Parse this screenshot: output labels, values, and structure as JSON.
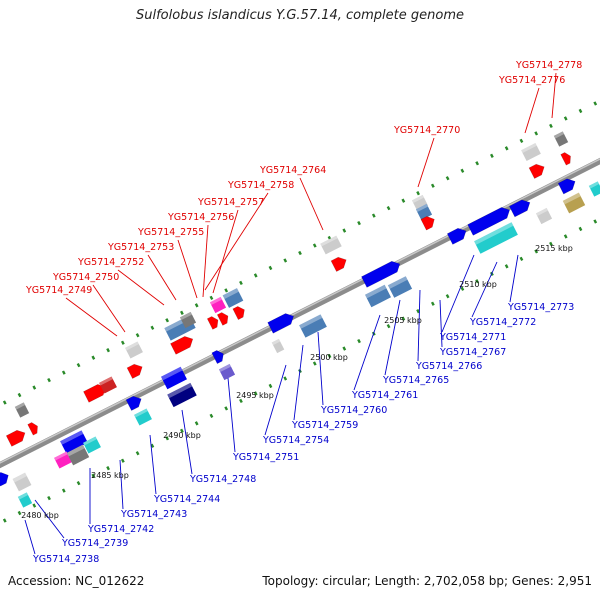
{
  "title": "Sulfolobus islandicus Y.G.57.14, complete genome",
  "accession": "Accession: NC_012622",
  "summary": "Topology: circular; Length: 2,702,058 bp; Genes: 2,951",
  "colors": {
    "forward_label": "#e00000",
    "reverse_label": "#0000cc",
    "backbone": "#8c8c8c",
    "ticks": "#2a8a2a",
    "forward_gene": "#ff0000",
    "reverse_gene": "#0000ee",
    "gene_steel": "#4a7db5",
    "gene_cyan": "#22cccc",
    "gene_navy": "#000080",
    "gene_grey": "#cccccc",
    "gene_magenta": "#ff20c0",
    "gene_olive": "#b8a050"
  },
  "scale_ticks": [
    {
      "label": "2480 kbp"
    },
    {
      "label": "2485 kbp"
    },
    {
      "label": "2490 kbp"
    },
    {
      "label": "2495 kbp"
    },
    {
      "label": "2500 kbp"
    },
    {
      "label": "2505 kbp"
    },
    {
      "label": "2510 kbp"
    },
    {
      "label": "2515 kbp"
    }
  ],
  "forward_labels": [
    {
      "text": "YG5714_2778"
    },
    {
      "text": "YG5714_2776"
    },
    {
      "text": "YG5714_2770"
    },
    {
      "text": "YG5714_2764"
    },
    {
      "text": "YG5714_2758"
    },
    {
      "text": "YG5714_2757"
    },
    {
      "text": "YG5714_2756"
    },
    {
      "text": "YG5714_2755"
    },
    {
      "text": "YG5714_2753"
    },
    {
      "text": "YG5714_2752"
    },
    {
      "text": "YG5714_2750"
    },
    {
      "text": "YG5714_2749"
    }
  ],
  "reverse_labels": [
    {
      "text": "YG5714_2773"
    },
    {
      "text": "YG5714_2772"
    },
    {
      "text": "YG5714_2771"
    },
    {
      "text": "YG5714_2767"
    },
    {
      "text": "YG5714_2766"
    },
    {
      "text": "YG5714_2765"
    },
    {
      "text": "YG5714_2761"
    },
    {
      "text": "YG5714_2760"
    },
    {
      "text": "YG5714_2759"
    },
    {
      "text": "YG5714_2754"
    },
    {
      "text": "YG5714_2751"
    },
    {
      "text": "YG5714_2748"
    },
    {
      "text": "YG5714_2744"
    },
    {
      "text": "YG5714_2743"
    },
    {
      "text": "YG5714_2742"
    },
    {
      "text": "YG5714_2739"
    },
    {
      "text": "YG5714_2738"
    }
  ]
}
